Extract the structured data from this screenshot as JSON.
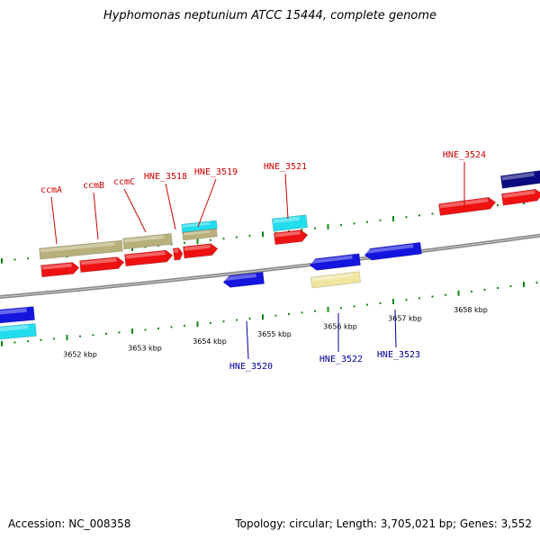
{
  "title": "Hyphomonas neptunium ATCC 15444, complete genome",
  "footer": {
    "accession": "Accession: NC_008358",
    "summary": "Topology: circular; Length: 3,705,021 bp; Genes: 3,552"
  },
  "colors": {
    "red": "#ee1111",
    "blue": "#1515e0",
    "cyan": "#22ddee",
    "navy": "#0a0a80",
    "olive": "#b8b07a",
    "khaki": "#f0e6a0",
    "tick": "#118811",
    "label_top": "#cc0000",
    "label_bottom": "#000099",
    "backbone": "#888888"
  },
  "ruler": [
    "3652 kbp",
    "3653 kbp",
    "3654 kbp",
    "3655 kbp",
    "3656 kbp",
    "3657 kbp",
    "3658 kbp"
  ],
  "genes_top": [
    "ccmA",
    "ccmB",
    "ccmC",
    "HNE_3518",
    "HNE_3519",
    "HNE_3521",
    "HNE_3524"
  ],
  "genes_bottom": [
    "HNE_3520",
    "HNE_3522",
    "HNE_3523"
  ]
}
